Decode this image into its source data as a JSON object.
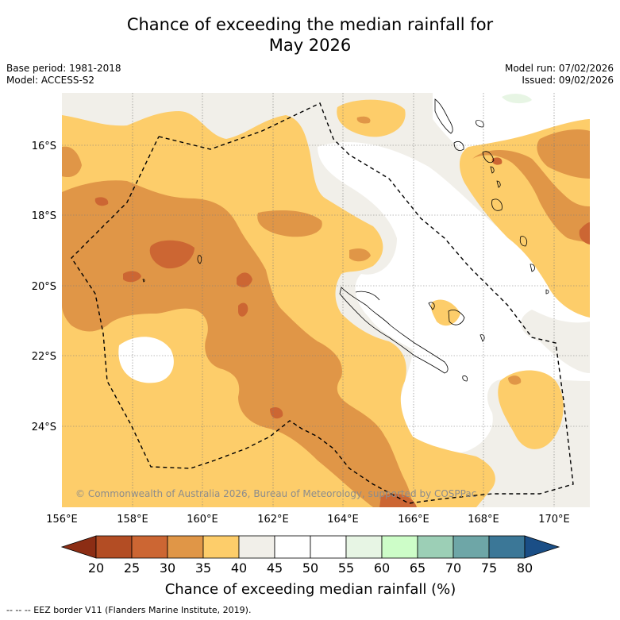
{
  "title": {
    "line1": "Chance of exceeding the median rainfall for",
    "line2": "May 2026"
  },
  "meta": {
    "base_period": "Base period: 1981-2018",
    "model": "Model: ACCESS-S2",
    "model_run": "Model run: 07/02/2026",
    "issued": "Issued: 09/02/2026"
  },
  "map": {
    "lat_labels": [
      "16°S",
      "18°S",
      "20°S",
      "22°S",
      "24°S"
    ],
    "lon_labels": [
      "156°E",
      "158°E",
      "160°E",
      "162°E",
      "164°E",
      "166°E",
      "168°E",
      "170°E"
    ],
    "copyright": "© Commonwealth of Australia 2026, Bureau of Meteorology, supported by COSPPac"
  },
  "colorbar": {
    "title": "Chance of exceeding median rainfall (%)",
    "ticks": [
      "20",
      "25",
      "30",
      "35",
      "40",
      "45",
      "50",
      "55",
      "60",
      "65",
      "70",
      "75",
      "80"
    ],
    "colors": [
      "#8c2d14",
      "#b34d24",
      "#cc6633",
      "#e09647",
      "#fdcd6a",
      "#f1efe9",
      "#ffffff",
      "#ffffff",
      "#e7f5e4",
      "#cdfdc8",
      "#9ccfb6",
      "#6ea6a7",
      "#3b7797",
      "#1a4e86"
    ]
  },
  "footer": {
    "legend": "--  --  -- EEZ border V11 (Flanders Marine Institute, 2019)."
  }
}
